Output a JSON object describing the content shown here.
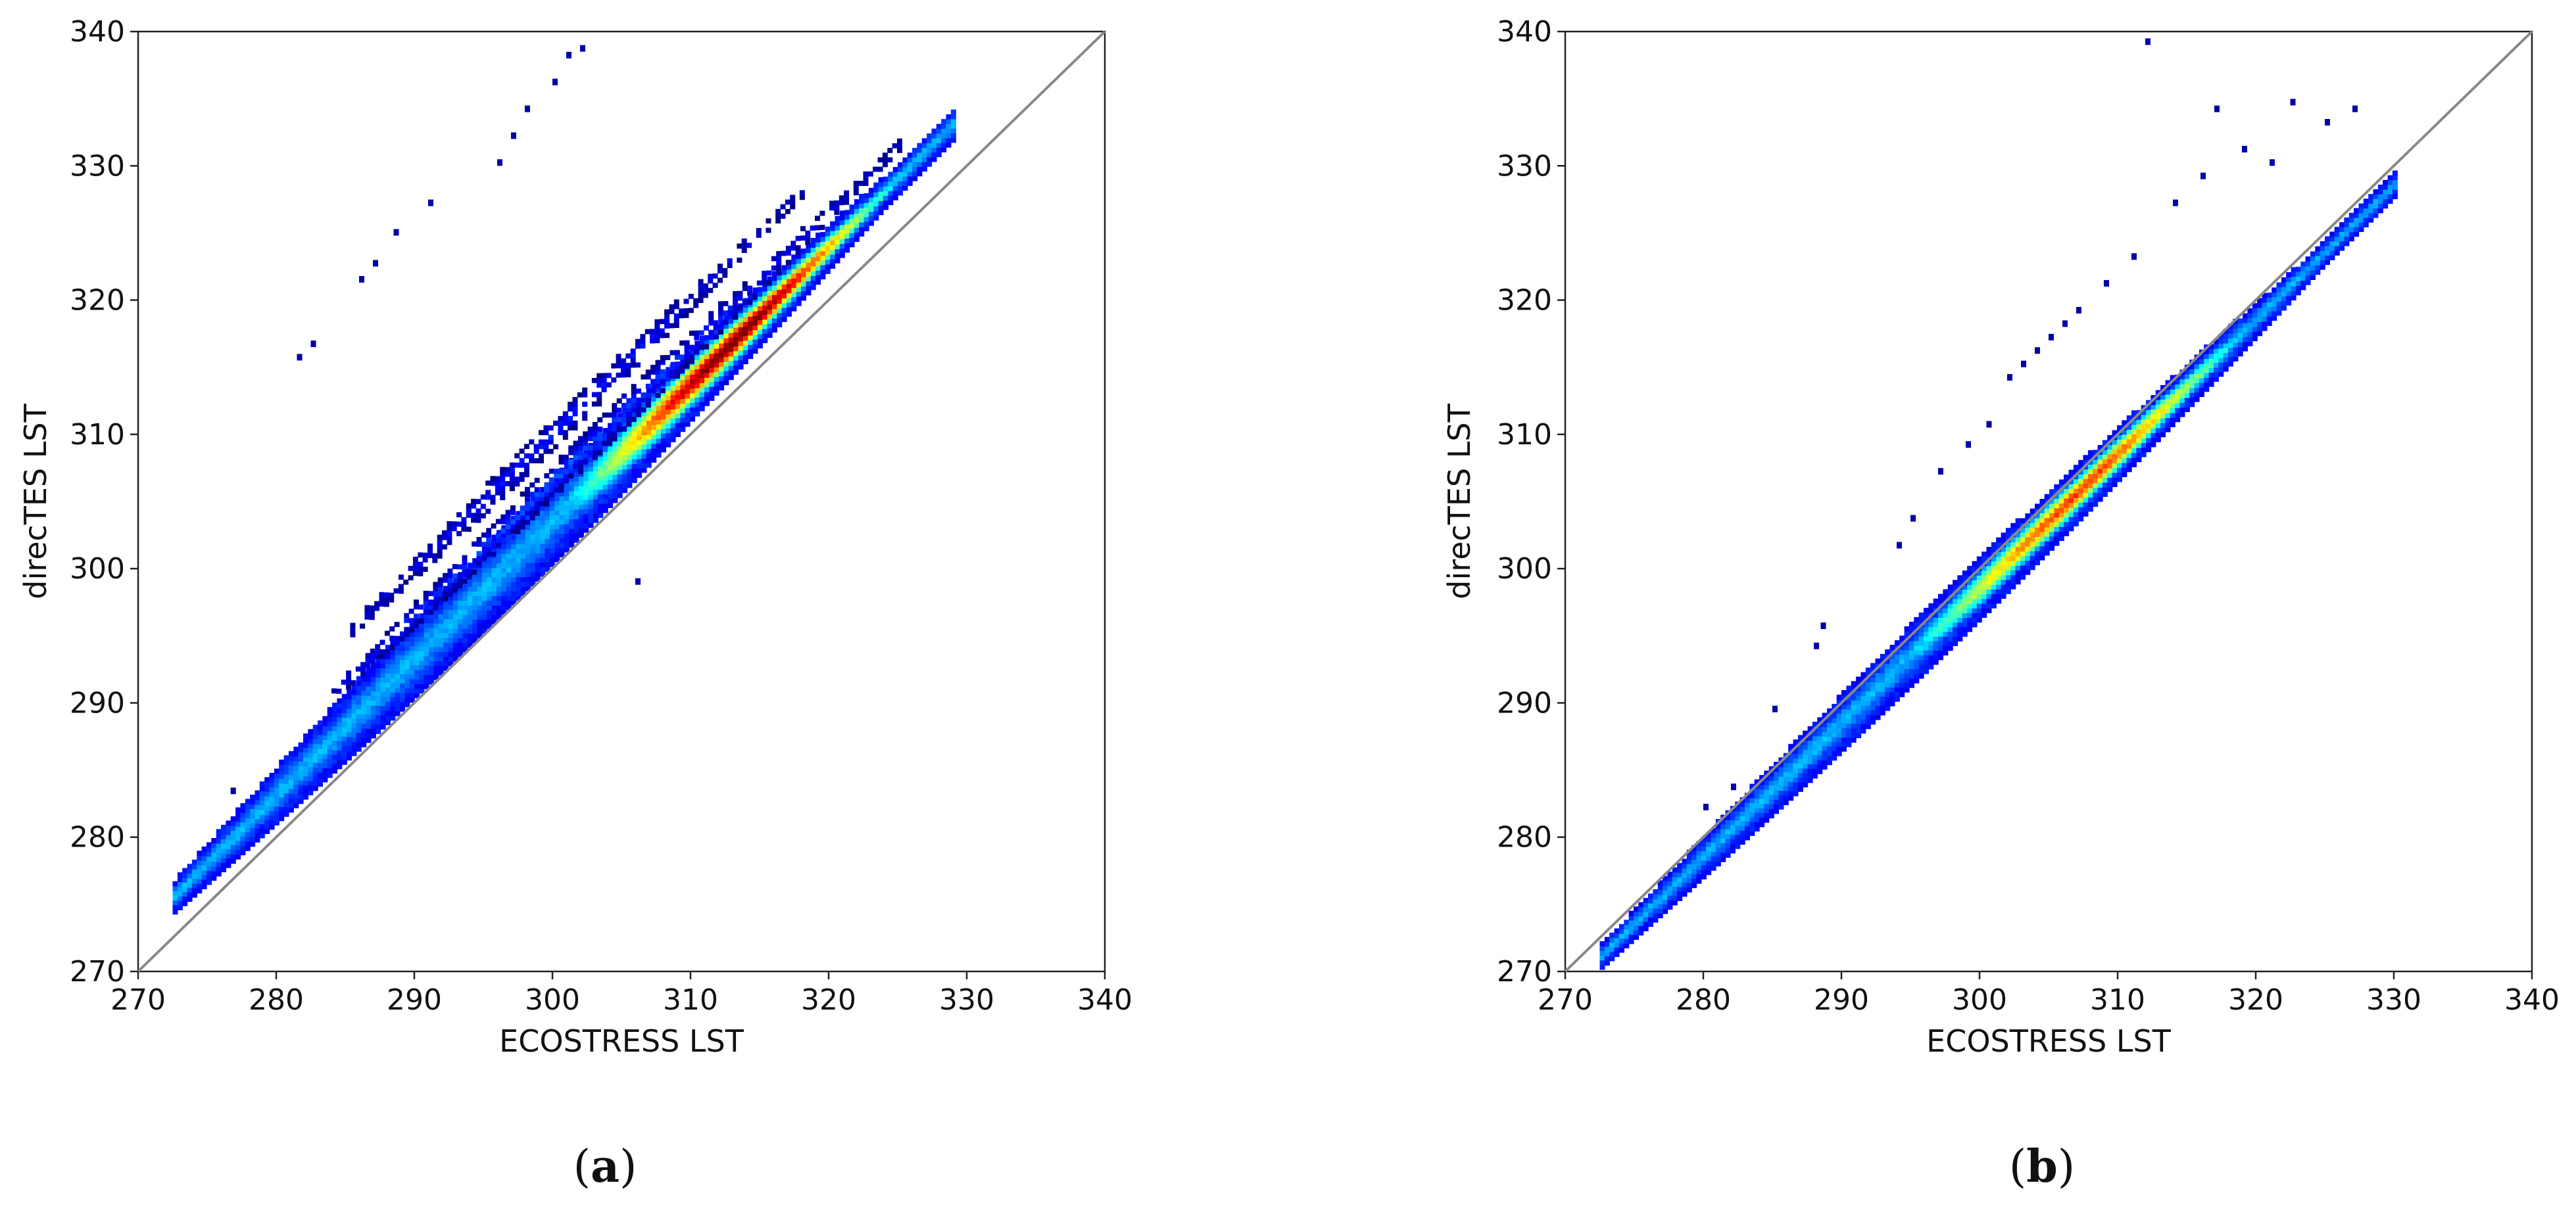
{
  "chart_data": [
    {
      "type": "heatmap",
      "panel_label": "a",
      "xlabel": "ECOSTRESS LST",
      "ylabel": "direcTES LST",
      "xlim": [
        270,
        340
      ],
      "ylim": [
        270,
        340
      ],
      "xticks": [
        270,
        280,
        290,
        300,
        310,
        320,
        330,
        340
      ],
      "yticks": [
        270,
        280,
        290,
        300,
        310,
        320,
        330,
        340
      ],
      "one_to_one_line": true,
      "colormap": "jet",
      "clusters": [
        {
          "role": "main",
          "x0": 272.5,
          "x1": 329,
          "intercept": -2.5,
          "slope": 1.02,
          "width": 2.2,
          "peak_x": 313,
          "peak_spread": 11,
          "peak_intensity": 1.0
        },
        {
          "role": "upper-offset",
          "x0": 284,
          "x1": 325,
          "intercept": 6.5,
          "slope": 1.0,
          "width": 0.9,
          "peak_x": 300,
          "peak_spread": 18,
          "peak_intensity": 0.18
        },
        {
          "role": "upper-offset",
          "x0": 285,
          "x1": 318,
          "intercept": 10,
          "slope": 1.0,
          "width": 0.8,
          "peak_x": 300,
          "peak_spread": 14,
          "peak_intensity": 0.12
        }
      ],
      "outliers": [
        {
          "x": 296,
          "y": 330
        },
        {
          "x": 298,
          "y": 334
        },
        {
          "x": 300,
          "y": 336
        },
        {
          "x": 301,
          "y": 338
        },
        {
          "x": 302,
          "y": 338.5
        },
        {
          "x": 297,
          "y": 332
        },
        {
          "x": 291,
          "y": 327
        },
        {
          "x": 288.5,
          "y": 324.8
        },
        {
          "x": 287,
          "y": 322.5
        },
        {
          "x": 286,
          "y": 321.3
        },
        {
          "x": 282.5,
          "y": 316.5
        },
        {
          "x": 281.5,
          "y": 315.5
        },
        {
          "x": 276.7,
          "y": 283.2
        },
        {
          "x": 306,
          "y": 298.8
        }
      ]
    },
    {
      "type": "heatmap",
      "panel_label": "b",
      "xlabel": "ECOSTRESS LST",
      "ylabel": "direcTES LST",
      "xlim": [
        270,
        340
      ],
      "ylim": [
        270,
        340
      ],
      "xticks": [
        270,
        280,
        290,
        300,
        310,
        320,
        330,
        340
      ],
      "yticks": [
        270,
        280,
        290,
        300,
        310,
        320,
        330,
        340
      ],
      "one_to_one_line": true,
      "colormap": "jet",
      "clusters": [
        {
          "role": "main",
          "x0": 272.5,
          "x1": 330,
          "intercept": -1.5,
          "slope": 1.0,
          "width": 1.6,
          "peak_x": 307,
          "peak_spread": 12,
          "peak_intensity": 0.8
        }
      ],
      "outliers": [
        {
          "x": 317,
          "y": 334
        },
        {
          "x": 322.5,
          "y": 334.5
        },
        {
          "x": 327,
          "y": 334
        },
        {
          "x": 312,
          "y": 339
        },
        {
          "x": 319,
          "y": 331
        },
        {
          "x": 316,
          "y": 329
        },
        {
          "x": 314,
          "y": 327
        },
        {
          "x": 311,
          "y": 323
        },
        {
          "x": 309,
          "y": 321
        },
        {
          "x": 307,
          "y": 319
        },
        {
          "x": 305,
          "y": 317
        },
        {
          "x": 303,
          "y": 315
        },
        {
          "x": 304,
          "y": 316
        },
        {
          "x": 306,
          "y": 318
        },
        {
          "x": 302,
          "y": 314
        },
        {
          "x": 300.5,
          "y": 310.5
        },
        {
          "x": 299,
          "y": 309
        },
        {
          "x": 297,
          "y": 307
        },
        {
          "x": 295,
          "y": 303.5
        },
        {
          "x": 294,
          "y": 301.5
        },
        {
          "x": 288.5,
          "y": 295.5
        },
        {
          "x": 288,
          "y": 294
        },
        {
          "x": 285,
          "y": 289.3
        },
        {
          "x": 282,
          "y": 283.5
        },
        {
          "x": 280,
          "y": 282
        },
        {
          "x": 321,
          "y": 330
        },
        {
          "x": 325,
          "y": 333
        }
      ]
    }
  ],
  "captions": [
    {
      "label": "a"
    },
    {
      "label": "b"
    }
  ]
}
